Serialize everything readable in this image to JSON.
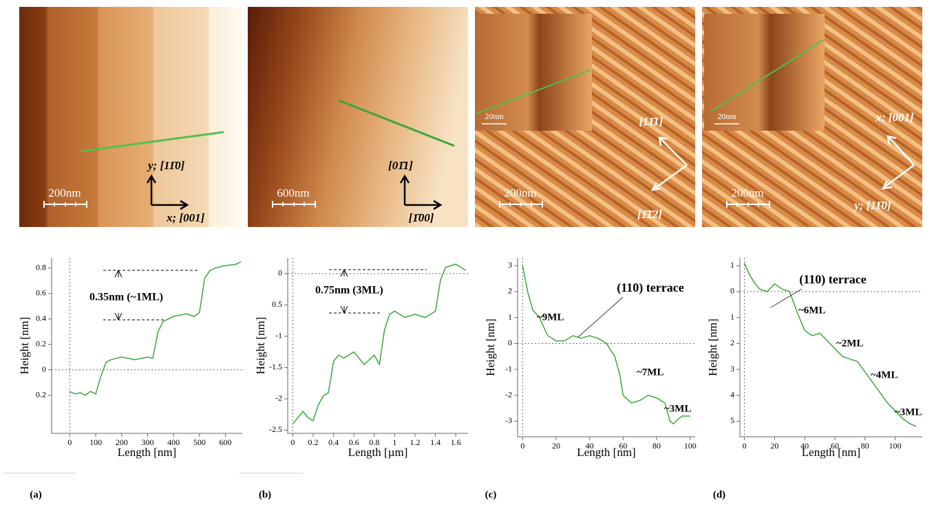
{
  "chart_data": [
    {
      "type": "line",
      "xlabel": "Length [nm]",
      "ylabel": "Height [nm]",
      "x": [
        0,
        20,
        40,
        60,
        80,
        100,
        120,
        140,
        160,
        200,
        250,
        300,
        320,
        340,
        360,
        400,
        450,
        480,
        500,
        520,
        540,
        560,
        600,
        640,
        660
      ],
      "series": [
        {
          "color": "#3aa63a",
          "values": [
            -0.17,
            -0.19,
            -0.18,
            -0.2,
            -0.17,
            -0.19,
            -0.05,
            0.06,
            0.08,
            0.1,
            0.08,
            0.1,
            0.09,
            0.3,
            0.38,
            0.42,
            0.44,
            0.42,
            0.45,
            0.72,
            0.78,
            0.8,
            0.82,
            0.83,
            0.85
          ]
        }
      ],
      "xlim": [
        -70,
        665
      ],
      "ylim": [
        -0.5,
        0.88
      ],
      "xticks": [
        0,
        100,
        200,
        300,
        400,
        500,
        600
      ],
      "yticks": [
        {
          "value": -0.2,
          "label": "0.2"
        },
        0,
        0.2,
        0.4,
        0.6,
        0.8
      ],
      "annotations": [
        "0.35nm (~1ML)"
      ]
    },
    {
      "type": "line",
      "xlabel": "Length [µm]",
      "ylabel": "Height [nm]",
      "x": [
        0,
        0.05,
        0.1,
        0.15,
        0.2,
        0.25,
        0.3,
        0.35,
        0.4,
        0.45,
        0.5,
        0.6,
        0.7,
        0.8,
        0.85,
        0.9,
        0.95,
        1.0,
        1.1,
        1.2,
        1.3,
        1.4,
        1.45,
        1.5,
        1.6,
        1.7
      ],
      "series": [
        {
          "color": "#3aa63a",
          "values": [
            -2.4,
            -2.3,
            -2.2,
            -2.3,
            -2.35,
            -2.1,
            -1.95,
            -1.9,
            -1.4,
            -1.3,
            -1.35,
            -1.25,
            -1.45,
            -1.3,
            -1.45,
            -0.9,
            -0.65,
            -0.6,
            -0.7,
            -0.65,
            -0.7,
            -0.6,
            -0.1,
            0.1,
            0.15,
            0.05
          ]
        }
      ],
      "xlim": [
        -0.05,
        1.72
      ],
      "ylim": [
        -2.55,
        0.25
      ],
      "xticks": [
        0,
        0.2,
        0.4,
        0.6,
        0.8,
        1,
        1.2,
        1.4,
        1.6
      ],
      "yticks": [
        0,
        {
          "value": -0.5,
          "label": "0.5"
        },
        -1,
        -1.5,
        -2,
        -2.5
      ],
      "annotations": [
        "0.75nm (3ML)"
      ]
    },
    {
      "type": "line",
      "xlabel": "Length [nm]",
      "ylabel": "Height [nm]",
      "x": [
        0,
        3,
        6,
        10,
        15,
        20,
        25,
        30,
        35,
        40,
        45,
        50,
        55,
        58,
        60,
        65,
        70,
        75,
        80,
        85,
        88,
        90,
        95,
        100
      ],
      "series": [
        {
          "color": "#3aa63a",
          "values": [
            3,
            2,
            1.3,
            1.0,
            0.3,
            0.1,
            0.1,
            0.3,
            0.2,
            0.3,
            0.2,
            0.0,
            -0.5,
            -1.2,
            -2.0,
            -2.3,
            -2.2,
            -2.0,
            -2.1,
            -2.3,
            -3.0,
            -3.1,
            -2.8,
            -2.8
          ]
        }
      ],
      "xlim": [
        -3,
        103
      ],
      "ylim": [
        -3.6,
        3.3
      ],
      "xticks": [
        0,
        20,
        40,
        60,
        80,
        100
      ],
      "yticks": [
        3,
        2,
        1,
        0,
        -1,
        -2,
        -3
      ],
      "annotations": [
        "~9ML",
        "(110) terrace",
        "~7ML",
        "~3ML"
      ]
    },
    {
      "type": "line",
      "xlabel": "Length [nm]",
      "ylabel": "Height [nm]",
      "x": [
        0,
        3,
        6,
        10,
        15,
        20,
        25,
        30,
        35,
        40,
        45,
        50,
        55,
        60,
        65,
        70,
        75,
        80,
        85,
        90,
        95,
        100,
        105,
        110,
        114
      ],
      "series": [
        {
          "color": "#3aa63a",
          "values": [
            1.1,
            0.7,
            0.4,
            0.1,
            0.0,
            0.3,
            0.1,
            0.0,
            -0.8,
            -1.5,
            -1.7,
            -1.6,
            -1.9,
            -2.2,
            -2.5,
            -2.6,
            -2.7,
            -3.1,
            -3.5,
            -3.9,
            -4.3,
            -4.6,
            -4.9,
            -5.1,
            -5.2
          ]
        }
      ],
      "xlim": [
        -3,
        118
      ],
      "ylim": [
        -5.6,
        1.3
      ],
      "xticks": [
        0,
        20,
        40,
        60,
        80,
        100
      ],
      "yticks": [
        1,
        0,
        {
          "value": -1,
          "label": "1"
        },
        {
          "value": -2,
          "label": "2"
        },
        {
          "value": -3,
          "label": "3"
        },
        {
          "value": -4,
          "label": "4"
        },
        {
          "value": -5,
          "label": "5"
        }
      ],
      "annotations": [
        "(110) terrace",
        "~6ML",
        "~2ML",
        "~4ML",
        "~3ML"
      ]
    }
  ],
  "images": [
    {
      "label": "(a)",
      "scale_bar": "200nm",
      "directions": [
        "y; [11̄0]",
        "x; [001]"
      ]
    },
    {
      "label": "(b)",
      "scale_bar": "600nm",
      "directions": [
        "[01̄1]",
        "[1̄00]"
      ]
    },
    {
      "label": "(c)",
      "scale_bar": "200nm",
      "inset_scale_bar": "20nm",
      "directions": [
        "[11̄1]",
        "[1̄1̄2]"
      ]
    },
    {
      "label": "(d)",
      "scale_bar": "200nm",
      "inset_scale_bar": "20nm",
      "directions": [
        "x; [001]",
        "y; [11̄0]"
      ]
    }
  ]
}
